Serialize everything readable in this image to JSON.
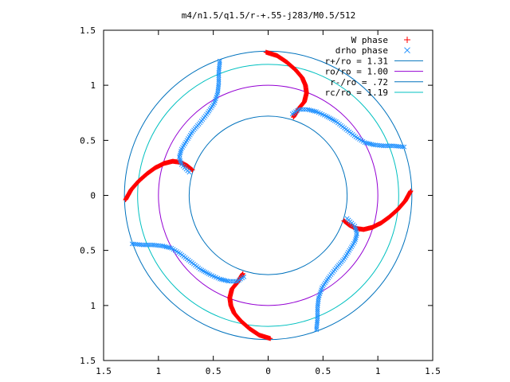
{
  "chart_data": {
    "type": "scatter",
    "title": "m4/n1.5/q1.5/r-+.55-j283/M0.5/512",
    "xlabel": "",
    "ylabel": "",
    "xlim": [
      -1.5,
      1.5
    ],
    "ylim": [
      -1.5,
      1.5
    ],
    "x_ticks": [
      "1.5",
      "1",
      "0.5",
      "0",
      "0.5",
      "1",
      "1.5"
    ],
    "y_ticks": [
      "1.5",
      "1",
      "0.5",
      "0",
      "0.5",
      "1",
      "1.5"
    ],
    "grid": false,
    "legend_position": "top-right",
    "circles": [
      {
        "name": "r+/ro = 1.31",
        "radius": 1.31,
        "color": "#0072bd"
      },
      {
        "name": "ro/ro = 1.00",
        "radius": 1.0,
        "color": "#9400d3"
      },
      {
        "name": "r-/ro = .72",
        "radius": 0.72,
        "color": "#0072bd"
      },
      {
        "name": "rc/ro = 1.19",
        "radius": 1.19,
        "color": "#00c0c0"
      }
    ],
    "series": [
      {
        "name": "W phase",
        "marker": "+",
        "color": "#ff0000",
        "arms": [
          [
            [
              -0.02,
              1.3
            ],
            [
              0.08,
              1.27
            ],
            [
              0.17,
              1.21
            ],
            [
              0.25,
              1.14
            ],
            [
              0.31,
              1.07
            ],
            [
              0.34,
              1.0
            ],
            [
              0.35,
              0.93
            ],
            [
              0.33,
              0.85
            ],
            [
              0.28,
              0.79
            ],
            [
              0.23,
              0.71
            ]
          ],
          [
            [
              1.3,
              0.04
            ],
            [
              1.25,
              -0.05
            ],
            [
              1.18,
              -0.13
            ],
            [
              1.1,
              -0.2
            ],
            [
              1.03,
              -0.25
            ],
            [
              0.95,
              -0.29
            ],
            [
              0.87,
              -0.31
            ],
            [
              0.8,
              -0.3
            ],
            [
              0.74,
              -0.27
            ],
            [
              0.69,
              -0.23
            ]
          ],
          [
            [
              0.02,
              -1.3
            ],
            [
              -0.08,
              -1.27
            ],
            [
              -0.17,
              -1.21
            ],
            [
              -0.25,
              -1.14
            ],
            [
              -0.31,
              -1.07
            ],
            [
              -0.34,
              -1.0
            ],
            [
              -0.35,
              -0.93
            ],
            [
              -0.33,
              -0.85
            ],
            [
              -0.28,
              -0.79
            ],
            [
              -0.23,
              -0.71
            ]
          ],
          [
            [
              -1.3,
              -0.04
            ],
            [
              -1.25,
              0.05
            ],
            [
              -1.18,
              0.13
            ],
            [
              -1.1,
              0.2
            ],
            [
              -1.03,
              0.25
            ],
            [
              -0.95,
              0.29
            ],
            [
              -0.87,
              0.31
            ],
            [
              -0.8,
              0.3
            ],
            [
              -0.74,
              0.27
            ],
            [
              -0.69,
              0.23
            ]
          ]
        ]
      },
      {
        "name": "drho phase",
        "marker": "x",
        "color": "#1e90ff",
        "arms": [
          [
            [
              0.72,
              -0.21
            ],
            [
              0.79,
              -0.28
            ],
            [
              0.81,
              -0.35
            ],
            [
              0.79,
              -0.42
            ],
            [
              0.74,
              -0.5
            ],
            [
              0.69,
              -0.58
            ],
            [
              0.62,
              -0.66
            ],
            [
              0.55,
              -0.75
            ],
            [
              0.49,
              -0.84
            ],
            [
              0.46,
              -0.93
            ],
            [
              0.45,
              -1.02
            ],
            [
              0.45,
              -1.12
            ],
            [
              0.44,
              -1.22
            ]
          ],
          [
            [
              0.22,
              0.74
            ],
            [
              0.28,
              0.78
            ],
            [
              0.36,
              0.78
            ],
            [
              0.44,
              0.76
            ],
            [
              0.53,
              0.72
            ],
            [
              0.62,
              0.67
            ],
            [
              0.71,
              0.6
            ],
            [
              0.8,
              0.53
            ],
            [
              0.88,
              0.48
            ],
            [
              0.96,
              0.46
            ],
            [
              1.05,
              0.45
            ],
            [
              1.14,
              0.45
            ],
            [
              1.24,
              0.44
            ]
          ],
          [
            [
              -0.72,
              0.21
            ],
            [
              -0.79,
              0.28
            ],
            [
              -0.81,
              0.35
            ],
            [
              -0.79,
              0.42
            ],
            [
              -0.74,
              0.5
            ],
            [
              -0.69,
              0.58
            ],
            [
              -0.62,
              0.66
            ],
            [
              -0.55,
              0.75
            ],
            [
              -0.49,
              0.84
            ],
            [
              -0.46,
              0.93
            ],
            [
              -0.45,
              1.02
            ],
            [
              -0.45,
              1.12
            ],
            [
              -0.44,
              1.22
            ]
          ],
          [
            [
              -0.22,
              -0.74
            ],
            [
              -0.28,
              -0.78
            ],
            [
              -0.36,
              -0.78
            ],
            [
              -0.44,
              -0.76
            ],
            [
              -0.53,
              -0.72
            ],
            [
              -0.62,
              -0.67
            ],
            [
              -0.71,
              -0.6
            ],
            [
              -0.8,
              -0.53
            ],
            [
              -0.88,
              -0.48
            ],
            [
              -0.96,
              -0.46
            ],
            [
              -1.05,
              -0.45
            ],
            [
              -1.14,
              -0.45
            ],
            [
              -1.24,
              -0.44
            ]
          ]
        ]
      }
    ]
  }
}
